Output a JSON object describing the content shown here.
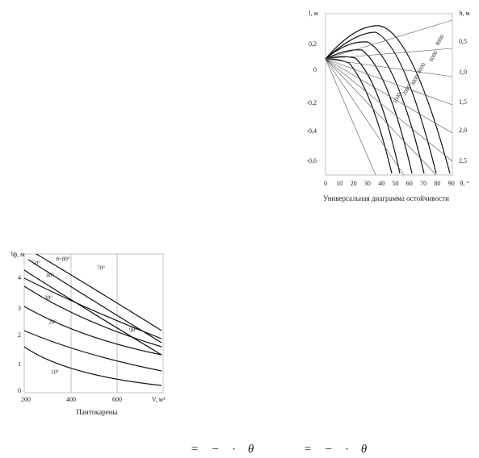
{
  "figure1": {
    "y_label": "l, м",
    "h_label": "h, м",
    "x_label": "θ, °",
    "y_ticks": [
      "0,2",
      "0",
      "-0,2",
      "-0,4",
      "-0,6"
    ],
    "h_ticks": [
      "0,5",
      "1,0",
      "1,5",
      "2,0",
      "2,5"
    ],
    "x_ticks": [
      "0",
      "10",
      "20",
      "30",
      "40",
      "50",
      "60",
      "70",
      "80",
      "90"
    ],
    "curve_labels": [
      "8000",
      "6000",
      "4000",
      "3000",
      "2000",
      "1600"
    ],
    "caption": "Универсальная диаграмма остойчивости"
  },
  "figure2": {
    "y_label": "lф, м",
    "x_label": "V, м³",
    "y_ticks": [
      "4",
      "3",
      "2",
      "1",
      "0"
    ],
    "x_ticks": [
      "200",
      "400",
      "600"
    ],
    "curve_labels": [
      "θ=80°",
      "70°",
      "50°",
      "40°",
      "30°",
      "20°",
      "10°",
      "90°"
    ],
    "caption": "Пантокарены"
  },
  "formulas": [
    "= − · θ",
    "= − · θ"
  ]
}
